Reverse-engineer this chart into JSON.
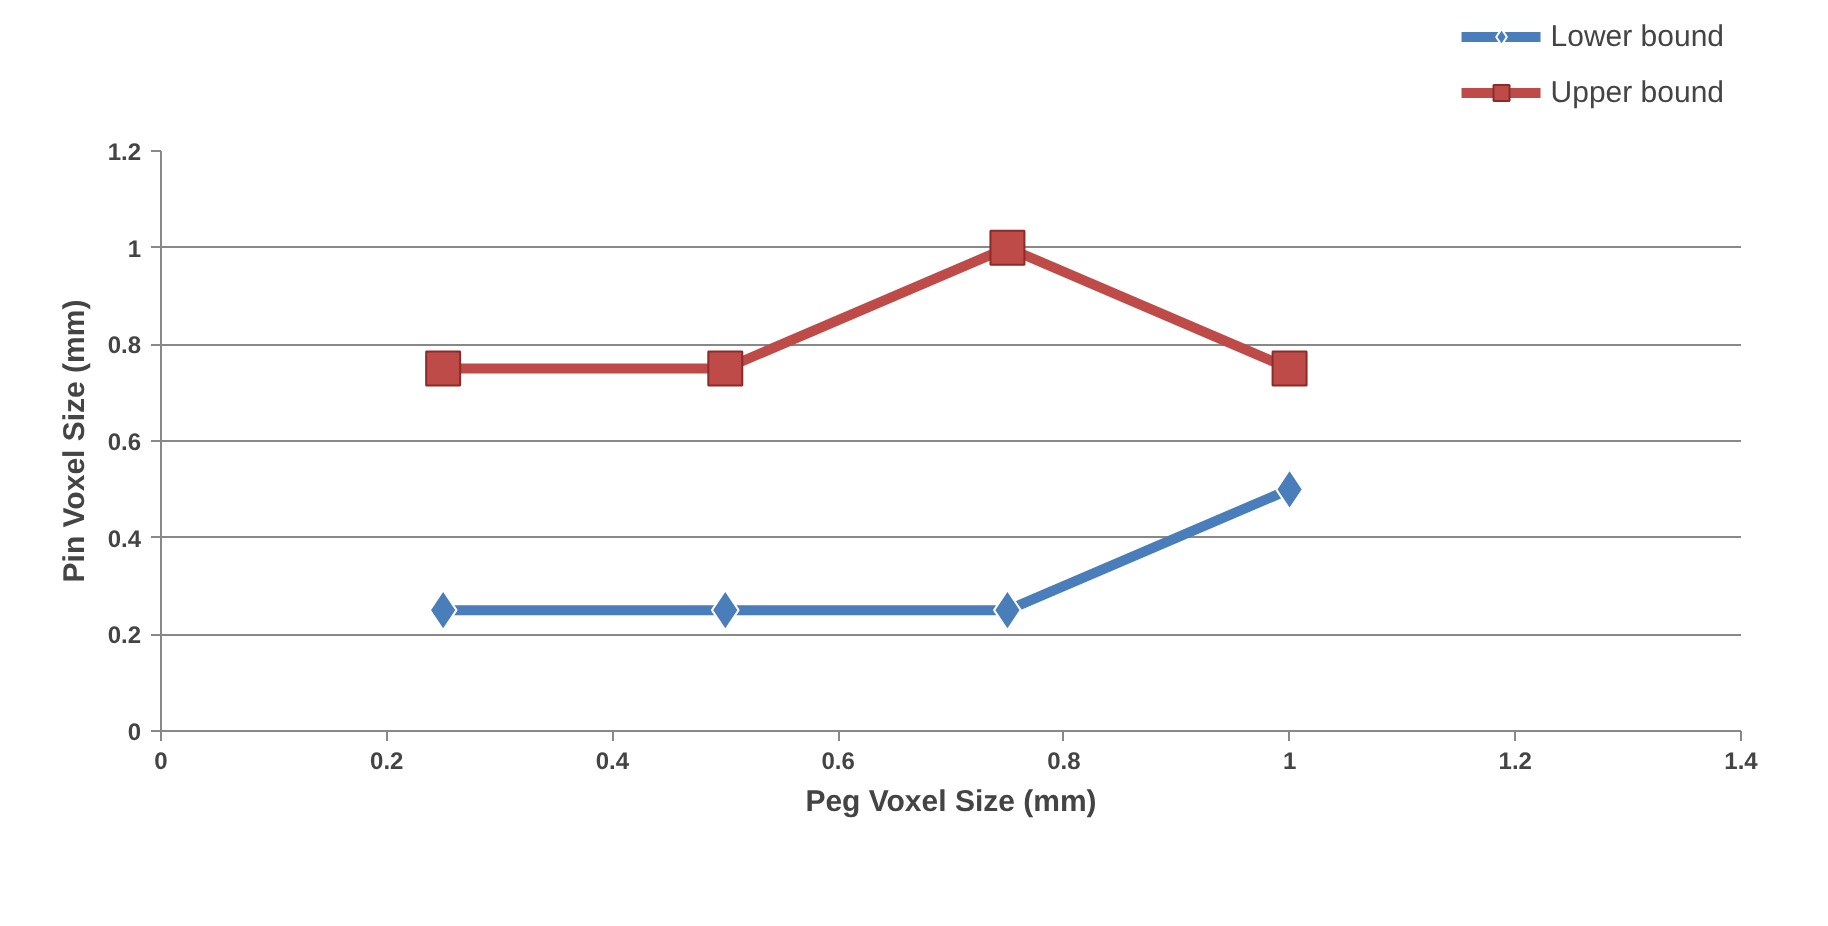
{
  "chart_data": {
    "type": "line",
    "xlabel": "Peg Voxel Size (mm)",
    "ylabel": "Pin Voxel Size (mm)",
    "x": [
      0.25,
      0.5,
      0.75,
      1
    ],
    "series": [
      {
        "name": "Lower bound",
        "color": "#4a7ebb",
        "marker": "diamond",
        "values": [
          0.25,
          0.25,
          0.25,
          0.5
        ]
      },
      {
        "name": "Upper bound",
        "color": "#be4b48",
        "marker": "square",
        "values": [
          0.75,
          0.75,
          1.0,
          0.75
        ]
      }
    ],
    "xlim": [
      0,
      1.4
    ],
    "xticks": [
      0,
      0.2,
      0.4,
      0.6,
      0.8,
      1,
      1.2,
      1.4
    ],
    "ylim": [
      0,
      1.2
    ],
    "yticks": [
      0,
      0.2,
      0.4,
      0.6,
      0.8,
      1,
      1.2
    ],
    "grid": "y",
    "legend": "top right",
    "line_style": "solid"
  }
}
